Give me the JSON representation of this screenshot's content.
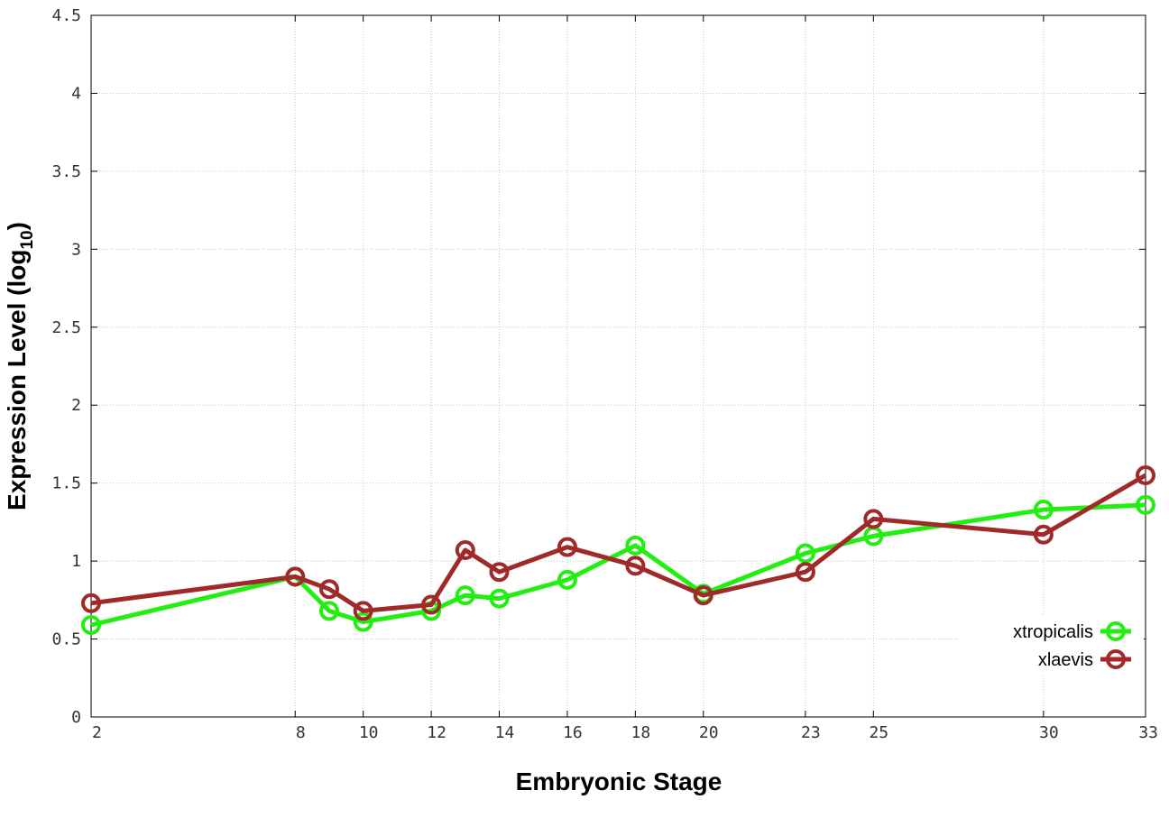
{
  "chart_data": {
    "type": "line",
    "xlabel": "Embryonic Stage",
    "ylabel": "Expression Level (log",
    "ylabel_sub": "10",
    "ylabel_close": ")",
    "xlim": [
      2,
      33
    ],
    "ylim": [
      0,
      4.5
    ],
    "x_ticks": [
      2,
      8,
      10,
      12,
      14,
      16,
      18,
      20,
      23,
      25,
      30,
      33
    ],
    "x_tick_labels": [
      "2",
      "8",
      "10",
      "12",
      "14",
      "16",
      "18",
      "20",
      "23",
      "25",
      "30",
      "33"
    ],
    "y_ticks": [
      0,
      0.5,
      1,
      1.5,
      2,
      2.5,
      3,
      3.5,
      4,
      4.5
    ],
    "y_tick_labels": [
      "0",
      "0.5",
      "1",
      "1.5",
      "2",
      "2.5",
      "3",
      "3.5",
      "4",
      "4.5"
    ],
    "grid": true,
    "legend_position": "bottom-right",
    "x": [
      2,
      8,
      9,
      10,
      12,
      13,
      14,
      16,
      18,
      20,
      23,
      25,
      30,
      33
    ],
    "series": [
      {
        "name": "xtropicalis",
        "color": "#22ee11",
        "values": [
          0.59,
          0.9,
          0.68,
          0.61,
          0.68,
          0.78,
          0.76,
          0.88,
          1.1,
          0.79,
          1.05,
          1.16,
          1.33,
          1.36
        ]
      },
      {
        "name": "xlaevis",
        "color": "#a02a2a",
        "values": [
          0.73,
          0.9,
          0.82,
          0.68,
          0.72,
          1.07,
          0.93,
          1.09,
          0.97,
          0.78,
          0.93,
          1.27,
          1.17,
          1.55
        ]
      }
    ]
  }
}
